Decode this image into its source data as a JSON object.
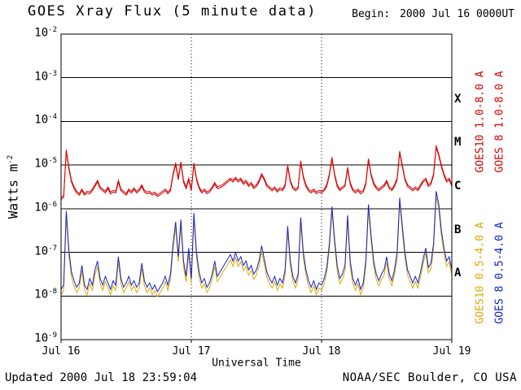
{
  "header": {
    "title": "GOES Xray Flux (5 minute data)",
    "begin_label": "Begin:",
    "begin_value": "2000 Jul 16 0000UT"
  },
  "footer": {
    "updated": "Updated 2000 Jul 18 23:59:04",
    "credit": "NOAA/SEC Boulder, CO USA"
  },
  "chart_data": {
    "type": "line",
    "title": "GOES Xray Flux (5 minute data)",
    "xlabel": "Universal Time",
    "ylabel_base": "Watts m",
    "ylabel_sup": "-2",
    "y_scale": "log10",
    "ylim_log": [
      -9,
      -2
    ],
    "y_tick_exponents": [
      -2,
      -3,
      -4,
      -5,
      -6,
      -7,
      -8,
      -9
    ],
    "x_span_days": 3,
    "x_step_days": 0.02,
    "x_ticks": [
      "Jul 16",
      "Jul 17",
      "Jul 18",
      "Jul 19"
    ],
    "flare_classes": [
      {
        "label": "X",
        "log_center": -3.5
      },
      {
        "label": "M",
        "log_center": -4.5
      },
      {
        "label": "C",
        "log_center": -5.5
      },
      {
        "label": "B",
        "log_center": -6.5
      },
      {
        "label": "A",
        "log_center": -7.5
      }
    ],
    "legend": [
      {
        "label": "GOES10 1.0-8.0 A",
        "color": "#cc0000",
        "col": 0,
        "row": 0
      },
      {
        "label": "GOES 8 1.0-8.0 A",
        "color": "#dd0000",
        "col": 1,
        "row": 0
      },
      {
        "label": "GOES10 0.5-4.0 A",
        "color": "#ddaa00",
        "col": 0,
        "row": 1
      },
      {
        "label": "GOES 8 0.5-4.0 A",
        "color": "#1122cc",
        "col": 1,
        "row": 1
      }
    ],
    "series": [
      {
        "name": "GOES10 0.5-4.0 A",
        "color": "#ddaa00",
        "log_values": [
          -7.97,
          -7.87,
          -6.17,
          -7.07,
          -7.57,
          -7.77,
          -7.92,
          -7.82,
          -7.42,
          -7.87,
          -7.97,
          -7.72,
          -7.87,
          -7.52,
          -7.32,
          -7.72,
          -7.87,
          -7.67,
          -7.82,
          -7.97,
          -7.77,
          -7.87,
          -7.22,
          -7.72,
          -7.92,
          -7.82,
          -7.67,
          -7.87,
          -7.77,
          -7.92,
          -7.82,
          -7.37,
          -7.77,
          -7.92,
          -7.82,
          -7.97,
          -7.87,
          -8.02,
          -7.92,
          -7.82,
          -7.67,
          -7.87,
          -7.62,
          -6.92,
          -6.42,
          -7.22,
          -6.37,
          -7.32,
          -7.67,
          -7.02,
          -7.72,
          -6.22,
          -7.12,
          -7.57,
          -7.82,
          -7.72,
          -7.92,
          -7.82,
          -7.62,
          -7.32,
          -7.67,
          -7.57,
          -7.47,
          -7.37,
          -7.27,
          -7.17,
          -7.32,
          -7.12,
          -7.32,
          -7.22,
          -7.42,
          -7.32,
          -7.52,
          -7.42,
          -7.62,
          -7.52,
          -7.32,
          -6.97,
          -7.27,
          -7.57,
          -7.72,
          -7.82,
          -7.67,
          -7.87,
          -7.72,
          -7.82,
          -7.52,
          -6.52,
          -7.32,
          -7.67,
          -7.82,
          -7.62,
          -6.32,
          -7.12,
          -7.52,
          -7.77,
          -7.92,
          -7.77,
          -7.97,
          -7.82,
          -7.87,
          -7.72,
          -7.47,
          -6.92,
          -6.07,
          -6.82,
          -7.42,
          -7.72,
          -7.62,
          -7.42,
          -6.27,
          -7.32,
          -7.72,
          -7.87,
          -7.72,
          -7.97,
          -7.82,
          -7.32,
          -6.02,
          -6.72,
          -7.32,
          -7.62,
          -7.77,
          -7.62,
          -7.52,
          -7.22,
          -7.62,
          -7.77,
          -7.52,
          -7.12,
          -5.87,
          -6.52,
          -7.12,
          -7.52,
          -7.67,
          -7.82,
          -7.67,
          -7.82,
          -7.57,
          -7.27,
          -7.02,
          -7.47,
          -7.37,
          -6.92,
          -5.72,
          -6.02,
          -6.62,
          -7.02,
          -7.32,
          -7.22,
          -7.52
        ]
      },
      {
        "name": "GOES10 1.0-8.0 A",
        "color": "#cc0000",
        "log_values": [
          -5.79,
          -5.74,
          -4.69,
          -5.09,
          -5.39,
          -5.54,
          -5.64,
          -5.69,
          -5.59,
          -5.69,
          -5.64,
          -5.66,
          -5.59,
          -5.49,
          -5.39,
          -5.54,
          -5.59,
          -5.64,
          -5.54,
          -5.66,
          -5.62,
          -5.64,
          -5.39,
          -5.59,
          -5.64,
          -5.69,
          -5.59,
          -5.64,
          -5.56,
          -5.64,
          -5.59,
          -5.49,
          -5.62,
          -5.66,
          -5.64,
          -5.69,
          -5.66,
          -5.72,
          -5.68,
          -5.64,
          -5.59,
          -5.66,
          -5.59,
          -5.24,
          -4.99,
          -5.34,
          -4.96,
          -5.39,
          -5.54,
          -5.34,
          -5.59,
          -4.99,
          -5.34,
          -5.54,
          -5.64,
          -5.59,
          -5.66,
          -5.62,
          -5.54,
          -5.44,
          -5.54,
          -5.52,
          -5.49,
          -5.44,
          -5.39,
          -5.34,
          -5.39,
          -5.32,
          -5.39,
          -5.34,
          -5.44,
          -5.39,
          -5.49,
          -5.44,
          -5.54,
          -5.49,
          -5.39,
          -5.24,
          -5.34,
          -5.49,
          -5.54,
          -5.59,
          -5.54,
          -5.62,
          -5.56,
          -5.59,
          -5.49,
          -5.04,
          -5.39,
          -5.54,
          -5.59,
          -5.54,
          -4.94,
          -5.29,
          -5.49,
          -5.59,
          -5.64,
          -5.59,
          -5.66,
          -5.62,
          -5.64,
          -5.59,
          -5.49,
          -5.24,
          -4.86,
          -5.24,
          -5.49,
          -5.59,
          -5.54,
          -5.49,
          -5.09,
          -5.44,
          -5.59,
          -5.64,
          -5.59,
          -5.66,
          -5.62,
          -5.44,
          -4.89,
          -5.24,
          -5.44,
          -5.54,
          -5.59,
          -5.54,
          -5.49,
          -5.39,
          -5.54,
          -5.59,
          -5.49,
          -5.34,
          -4.72,
          -5.04,
          -5.34,
          -5.49,
          -5.54,
          -5.59,
          -5.54,
          -5.59,
          -5.49,
          -5.39,
          -5.34,
          -5.49,
          -5.44,
          -5.24,
          -4.59,
          -4.79,
          -5.04,
          -5.24,
          -5.39,
          -5.34,
          -5.49
        ]
      },
      {
        "name": "GOES 8 1.0-8.0 A",
        "color": "#dd0000",
        "log_values": [
          -5.75,
          -5.7,
          -4.65,
          -5.05,
          -5.35,
          -5.5,
          -5.6,
          -5.65,
          -5.55,
          -5.65,
          -5.6,
          -5.62,
          -5.55,
          -5.45,
          -5.35,
          -5.5,
          -5.55,
          -5.6,
          -5.5,
          -5.62,
          -5.58,
          -5.6,
          -5.35,
          -5.55,
          -5.6,
          -5.65,
          -5.55,
          -5.6,
          -5.52,
          -5.6,
          -5.55,
          -5.45,
          -5.58,
          -5.62,
          -5.6,
          -5.65,
          -5.62,
          -5.68,
          -5.64,
          -5.6,
          -5.55,
          -5.62,
          -5.55,
          -5.2,
          -4.95,
          -5.3,
          -4.92,
          -5.35,
          -5.5,
          -5.3,
          -5.55,
          -4.95,
          -5.3,
          -5.5,
          -5.6,
          -5.55,
          -5.62,
          -5.58,
          -5.5,
          -5.4,
          -5.5,
          -5.48,
          -5.45,
          -5.4,
          -5.35,
          -5.3,
          -5.35,
          -5.28,
          -5.35,
          -5.3,
          -5.4,
          -5.35,
          -5.45,
          -5.4,
          -5.5,
          -5.45,
          -5.35,
          -5.2,
          -5.3,
          -5.45,
          -5.5,
          -5.55,
          -5.5,
          -5.58,
          -5.52,
          -5.55,
          -5.45,
          -5.0,
          -5.35,
          -5.5,
          -5.55,
          -5.5,
          -4.9,
          -5.25,
          -5.45,
          -5.55,
          -5.6,
          -5.55,
          -5.62,
          -5.58,
          -5.6,
          -5.55,
          -5.45,
          -5.2,
          -4.82,
          -5.2,
          -5.45,
          -5.55,
          -5.5,
          -5.45,
          -5.05,
          -5.4,
          -5.55,
          -5.6,
          -5.55,
          -5.62,
          -5.58,
          -5.4,
          -4.85,
          -5.2,
          -5.4,
          -5.5,
          -5.55,
          -5.5,
          -5.45,
          -5.35,
          -5.5,
          -5.55,
          -5.45,
          -5.3,
          -4.68,
          -5.0,
          -5.3,
          -5.45,
          -5.5,
          -5.55,
          -5.5,
          -5.55,
          -5.45,
          -5.35,
          -5.3,
          -5.45,
          -5.4,
          -5.2,
          -4.55,
          -4.75,
          -5.0,
          -5.2,
          -5.35,
          -5.3,
          -5.45
        ]
      },
      {
        "name": "GOES 8 0.5-4.0 A",
        "color": "#1122cc",
        "log_values": [
          -7.85,
          -7.75,
          -6.05,
          -6.95,
          -7.45,
          -7.65,
          -7.8,
          -7.7,
          -7.3,
          -7.75,
          -7.85,
          -7.6,
          -7.75,
          -7.4,
          -7.2,
          -7.6,
          -7.75,
          -7.55,
          -7.7,
          -7.85,
          -7.65,
          -7.75,
          -7.1,
          -7.6,
          -7.8,
          -7.7,
          -7.55,
          -7.75,
          -7.65,
          -7.8,
          -7.7,
          -7.25,
          -7.65,
          -7.8,
          -7.7,
          -7.85,
          -7.75,
          -7.9,
          -7.8,
          -7.7,
          -7.55,
          -7.75,
          -7.5,
          -6.8,
          -6.3,
          -7.1,
          -6.25,
          -7.2,
          -7.55,
          -6.9,
          -7.6,
          -6.1,
          -7.0,
          -7.45,
          -7.7,
          -7.6,
          -7.8,
          -7.7,
          -7.5,
          -7.2,
          -7.55,
          -7.45,
          -7.35,
          -7.25,
          -7.15,
          -7.05,
          -7.2,
          -7.0,
          -7.2,
          -7.1,
          -7.3,
          -7.2,
          -7.4,
          -7.3,
          -7.5,
          -7.4,
          -7.2,
          -6.85,
          -7.15,
          -7.45,
          -7.6,
          -7.7,
          -7.55,
          -7.75,
          -7.6,
          -7.7,
          -7.4,
          -6.4,
          -7.2,
          -7.55,
          -7.7,
          -7.5,
          -6.2,
          -7.0,
          -7.4,
          -7.65,
          -7.8,
          -7.65,
          -7.85,
          -7.7,
          -7.75,
          -7.6,
          -7.35,
          -6.8,
          -5.95,
          -6.7,
          -7.3,
          -7.6,
          -7.5,
          -7.3,
          -6.15,
          -7.2,
          -7.6,
          -7.75,
          -7.6,
          -7.85,
          -7.7,
          -7.2,
          -5.9,
          -6.6,
          -7.2,
          -7.5,
          -7.65,
          -7.5,
          -7.4,
          -7.1,
          -7.5,
          -7.65,
          -7.4,
          -7.0,
          -5.75,
          -6.4,
          -7.0,
          -7.4,
          -7.55,
          -7.7,
          -7.55,
          -7.7,
          -7.45,
          -7.15,
          -6.9,
          -7.35,
          -7.25,
          -6.8,
          -5.6,
          -5.9,
          -6.5,
          -6.9,
          -7.2,
          -7.1,
          -7.4
        ]
      }
    ]
  }
}
